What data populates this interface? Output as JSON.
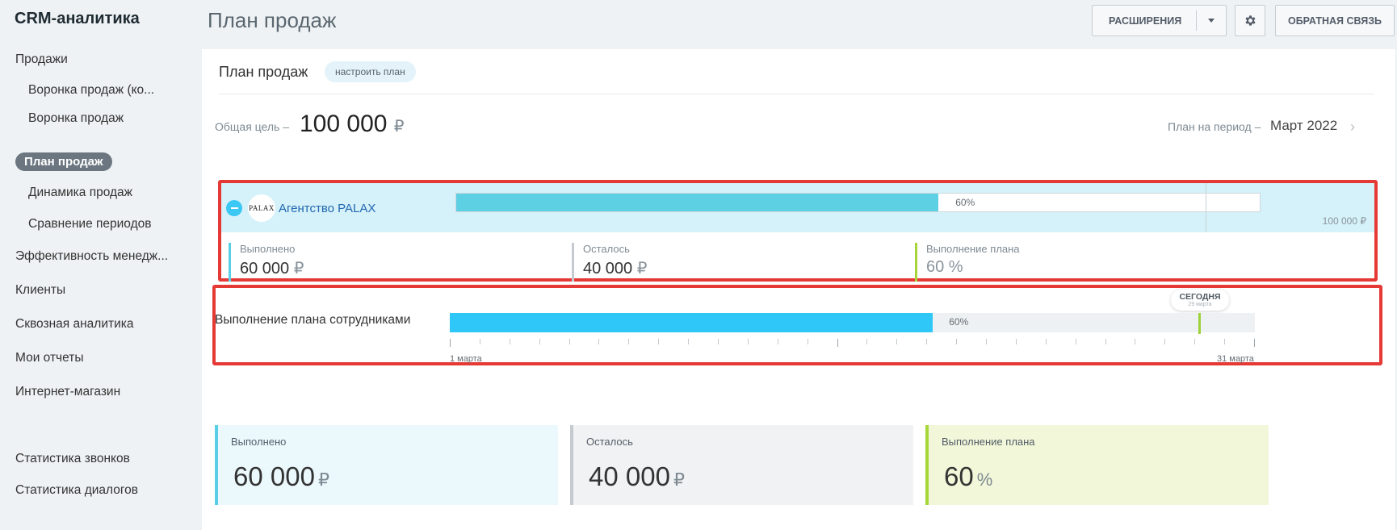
{
  "sidebar": {
    "app_title": "CRM-аналитика",
    "items": [
      {
        "label": "Продажи"
      },
      {
        "label": "Воронка продаж (ко..."
      },
      {
        "label": "Воронка продаж"
      },
      {
        "label": "План продаж"
      },
      {
        "label": "Динамика продаж"
      },
      {
        "label": "Сравнение периодов"
      },
      {
        "label": "Эффективность менедж..."
      },
      {
        "label": "Клиенты"
      },
      {
        "label": "Сквозная аналитика"
      },
      {
        "label": "Мои отчеты"
      },
      {
        "label": "Интернет-магазин"
      },
      {
        "label": "Статистика звонков"
      },
      {
        "label": "Статистика диалогов"
      }
    ],
    "active_item": "План продаж"
  },
  "header": {
    "title": "План продаж",
    "extensions_label": "РАСШИРЕНИЯ",
    "feedback_label": "ОБРАТНАЯ СВЯЗЬ"
  },
  "panel": {
    "title": "План продаж",
    "tune_label": "настроить план",
    "goal_label": "Общая цель",
    "goal_dash": "–",
    "goal_value": "100 000",
    "currency": "₽",
    "period_label": "План на период",
    "period_dash": "–",
    "period_value": "Март 2022"
  },
  "company": {
    "logo_text": "PALAX",
    "name": "Агентство PALAX",
    "progress": 0.6,
    "progress_label": "60%",
    "total_label": "100 000 ₽",
    "stats": [
      {
        "label": "Выполнено",
        "value": "60 000",
        "unit": "₽"
      },
      {
        "label": "Осталось",
        "value": "40 000",
        "unit": "₽"
      },
      {
        "label": "Выполнение плана",
        "value": "60 %",
        "unit": ""
      }
    ]
  },
  "employees": {
    "title": "Выполнение плана сотрудниками",
    "progress": 0.6,
    "progress_label": "60%",
    "today_label": "СЕГОДНЯ",
    "today_date": "29 марта",
    "axis_start": "1 марта",
    "axis_end": "31 марта"
  },
  "summary": [
    {
      "label": "Выполнено",
      "value": "60 000",
      "unit": "₽"
    },
    {
      "label": "Осталось",
      "value": "40 000",
      "unit": "₽"
    },
    {
      "label": "Выполнение плана",
      "value": "60",
      "unit": "%"
    }
  ],
  "colors": {
    "accent": "#3bc8f5",
    "done": "#59cfe7",
    "remaining": "#c4cacf",
    "plan": "#a7d63a",
    "highlight": "#e53935"
  }
}
